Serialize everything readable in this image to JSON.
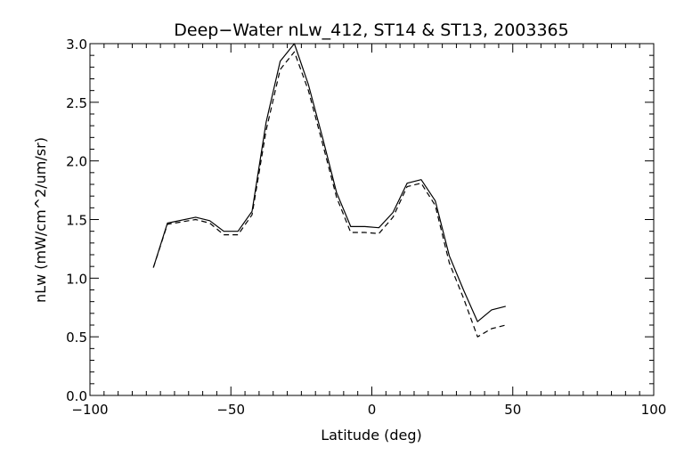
{
  "chart_data": {
    "type": "line",
    "title": "Deep−Water nLw_412, ST14 & ST13, 2003365",
    "xlabel": "Latitude (deg)",
    "ylabel": "nLw (mW/cm^2/um/sr)",
    "xlim": [
      -100,
      100
    ],
    "ylim": [
      0,
      3.0
    ],
    "xticks": [
      -100,
      -50,
      0,
      50,
      100
    ],
    "xtick_labels": [
      "−100",
      "−50",
      "0",
      "50",
      "100"
    ],
    "yticks": [
      0,
      0.5,
      1.0,
      1.5,
      2.0,
      2.5,
      3.0
    ],
    "ytick_labels": [
      "0.0",
      "0.5",
      "1.0",
      "1.5",
      "2.0",
      "2.5",
      "3.0"
    ],
    "x_minor_step": 5,
    "y_minor_step": 0.1,
    "grid": false,
    "series": [
      {
        "style": "solid",
        "x": [
          -77.5,
          -72.5,
          -62.5,
          -57.5,
          -52.5,
          -47.5,
          -42.5,
          -37.5,
          -32.5,
          -27.5,
          -22.5,
          -17.5,
          -12.5,
          -7.5,
          -2.5,
          2.5,
          7.5,
          12.5,
          17.5,
          22.5,
          27.5,
          32.5,
          37.5,
          42.5,
          47.5
        ],
        "y": [
          1.09,
          1.47,
          1.52,
          1.49,
          1.4,
          1.4,
          1.57,
          2.33,
          2.85,
          3.0,
          2.65,
          2.2,
          1.73,
          1.44,
          1.44,
          1.43,
          1.56,
          1.81,
          1.84,
          1.66,
          1.19,
          0.9,
          0.63,
          0.73,
          0.76
        ]
      },
      {
        "style": "dashed",
        "x": [
          -77.5,
          -72.5,
          -62.5,
          -57.5,
          -52.5,
          -47.5,
          -42.5,
          -37.5,
          -32.5,
          -27.5,
          -22.5,
          -17.5,
          -12.5,
          -7.5,
          -2.5,
          2.5,
          7.5,
          12.5,
          17.5,
          22.5,
          27.5,
          32.5,
          37.5,
          42.5,
          47.5
        ],
        "y": [
          1.09,
          1.46,
          1.5,
          1.47,
          1.37,
          1.37,
          1.54,
          2.26,
          2.78,
          2.93,
          2.6,
          2.15,
          1.69,
          1.39,
          1.39,
          1.38,
          1.52,
          1.78,
          1.81,
          1.62,
          1.13,
          0.83,
          0.5,
          0.57,
          0.6
        ]
      }
    ]
  }
}
